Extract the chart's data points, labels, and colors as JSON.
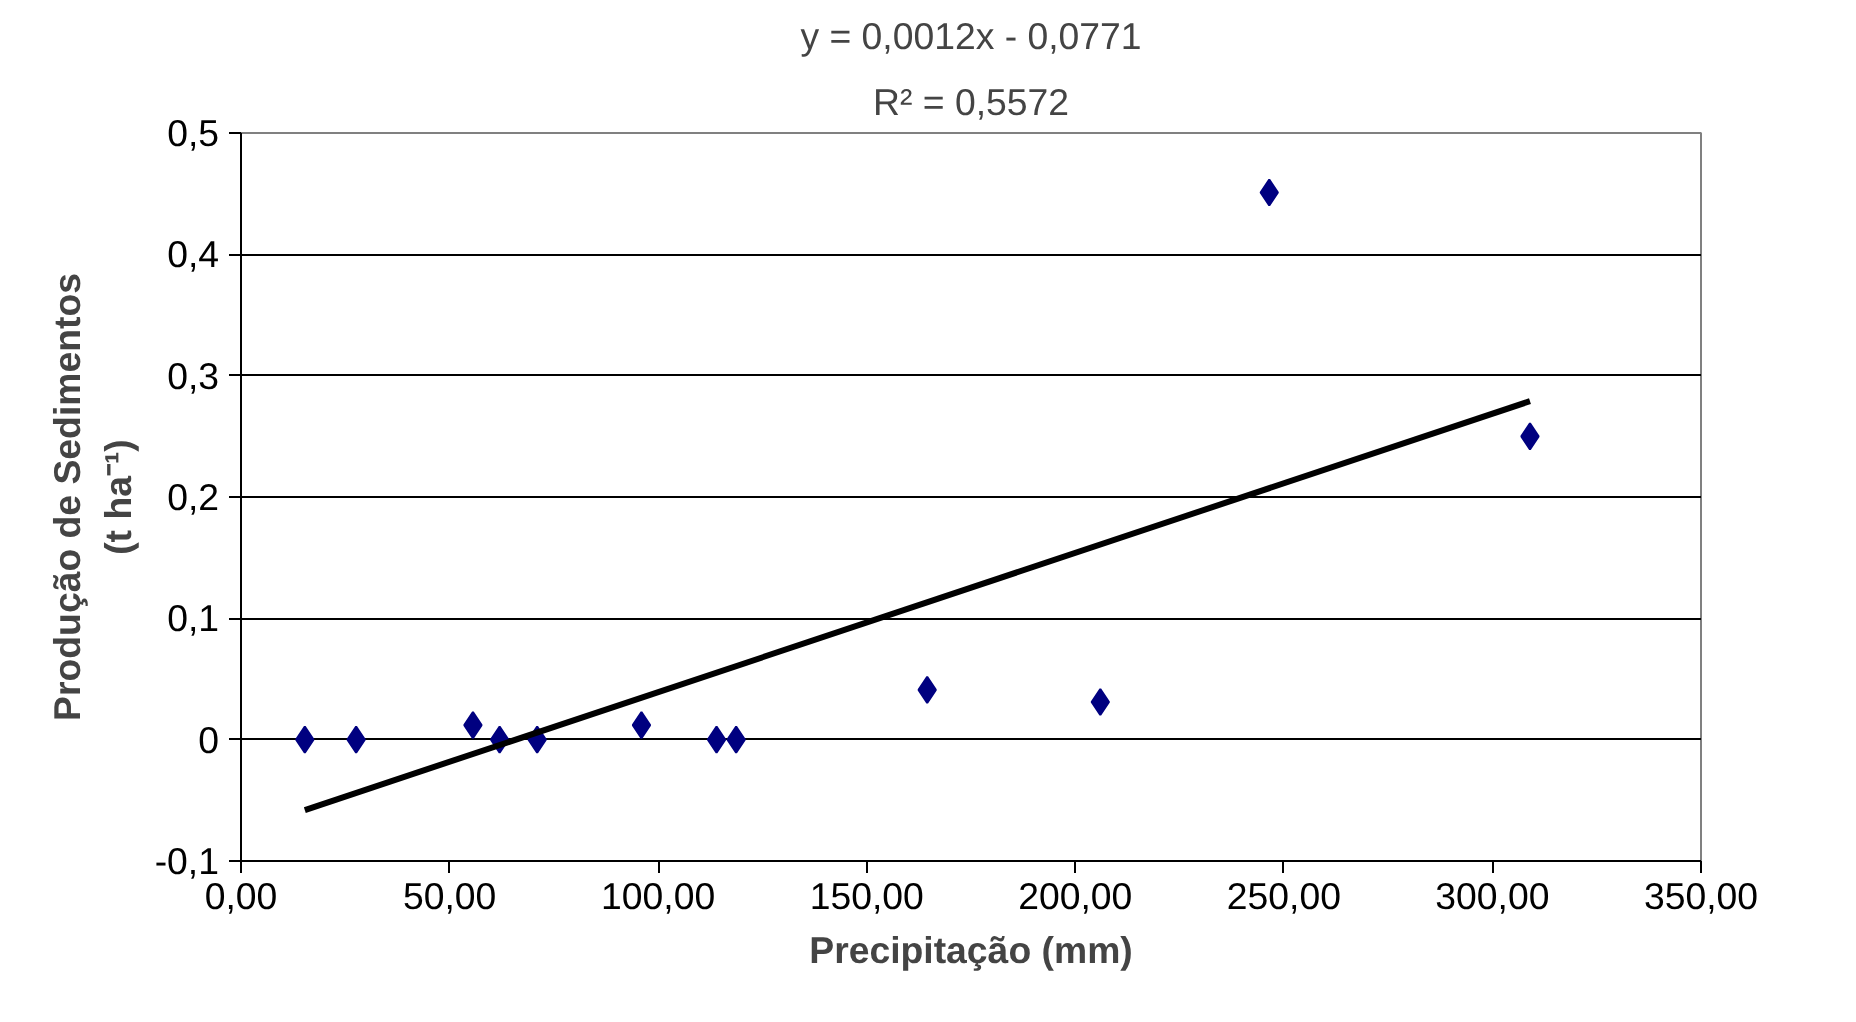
{
  "chart_data": {
    "type": "scatter",
    "xlabel": "Precipitação (mm)",
    "ylabel": "Produção de Sedimentos\n(t ha⁻¹)",
    "annotations": [
      "y = 0,0012x - 0,0771",
      "R² = 0,5572"
    ],
    "series": [
      {
        "color": "#000080",
        "marker": "diamond",
        "x": [
          15.3,
          27.6,
          55.6,
          62,
          71,
          96,
          114,
          118.7,
          164.5,
          206,
          246.5,
          309
        ],
        "values": [
          0,
          0,
          0.012,
          0,
          0,
          0.012,
          0,
          0,
          0.041,
          0.031,
          0.451,
          0.25
        ]
      },
      {
        "type": "line",
        "color": "#000000",
        "marker": "none",
        "x": [
          15.3,
          309
        ],
        "values": [
          -0.058,
          0.279
        ]
      }
    ],
    "xlim": [
      0,
      350
    ],
    "ylim": [
      -0.1,
      0.5
    ],
    "xticks": [
      {
        "value": 0,
        "label": "0,00"
      },
      {
        "value": 50,
        "label": "50,00"
      },
      {
        "value": 100,
        "label": "100,00"
      },
      {
        "value": 150,
        "label": "150,00"
      },
      {
        "value": 200,
        "label": "200,00"
      },
      {
        "value": 250,
        "label": "250,00"
      },
      {
        "value": 300,
        "label": "300,00"
      },
      {
        "value": 350,
        "label": "350,00"
      }
    ],
    "yticks": [
      {
        "value": -0.1,
        "label": "-0,1"
      },
      0,
      {
        "value": 0.1,
        "label": "0,1"
      },
      {
        "value": 0.2,
        "label": "0,2"
      },
      {
        "value": 0.3,
        "label": "0,3"
      },
      {
        "value": 0.4,
        "label": "0,4"
      },
      {
        "value": 0.5,
        "label": "0,5"
      }
    ],
    "grid": "y"
  }
}
